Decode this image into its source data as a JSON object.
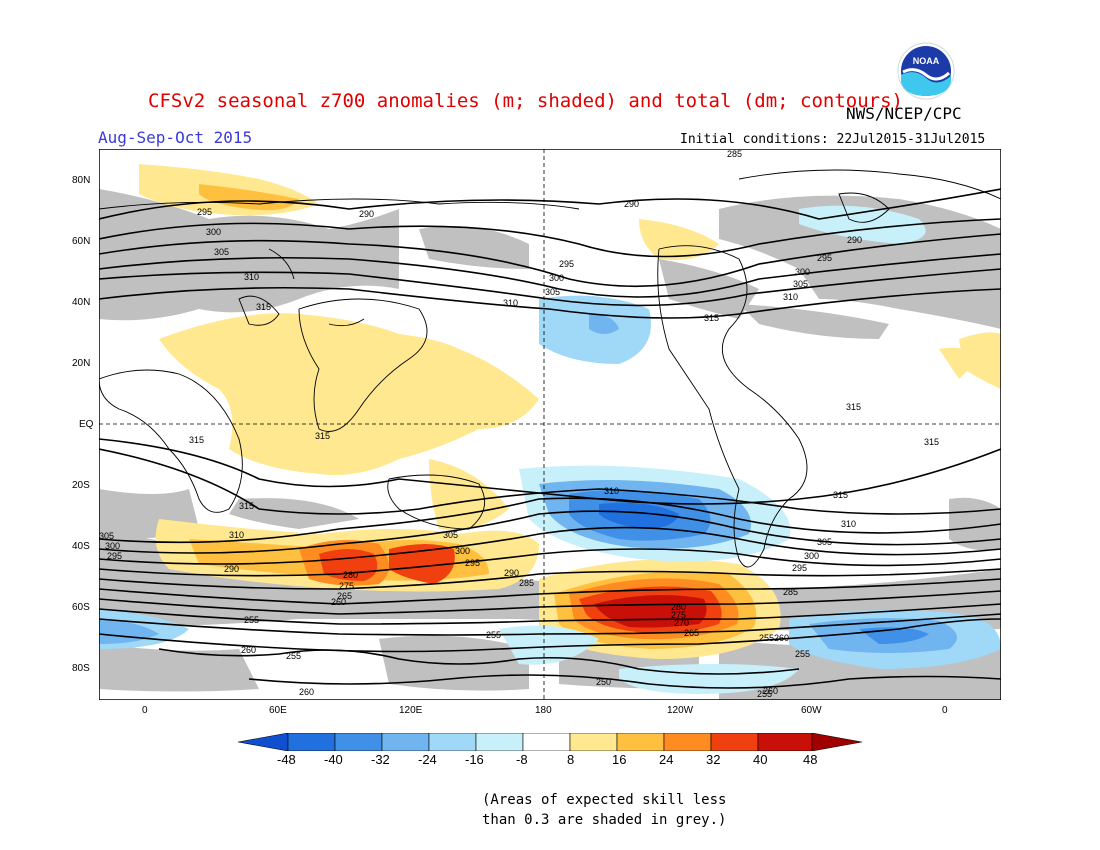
{
  "header": {
    "title": "CFSv2 seasonal z700 anomalies (m; shaded) and total (dm; contours)",
    "agency": "NWS/NCEP/CPC",
    "season": "Aug-Sep-Oct 2015",
    "initial_conditions": "Initial conditions: 22Jul2015-31Jul2015",
    "logo_text": "NOAA"
  },
  "map": {
    "lat_labels": [
      "80N",
      "60N",
      "40N",
      "20N",
      "EQ",
      "20S",
      "40S",
      "60S",
      "80S"
    ],
    "lon_labels": [
      "0",
      "60E",
      "120E",
      "180",
      "120W",
      "60W",
      "0"
    ],
    "contour_labels": [
      "285",
      "295",
      "290",
      "300",
      "305",
      "310",
      "315",
      "315",
      "290",
      "295",
      "300",
      "305",
      "310",
      "315",
      "295",
      "300",
      "305",
      "310",
      "315",
      "290",
      "310",
      "315",
      "315",
      "315",
      "315",
      "310",
      "305",
      "300",
      "295",
      "310",
      "305",
      "300",
      "295",
      "290",
      "285",
      "305",
      "300",
      "295",
      "290",
      "280",
      "275",
      "265",
      "260",
      "255",
      "260",
      "255",
      "260",
      "255",
      "250",
      "255",
      "260",
      "285",
      "280",
      "275",
      "270",
      "265",
      "260",
      "255",
      "255"
    ],
    "colors": {
      "neg48": "#1050d0",
      "neg40": "#2070e0",
      "neg32": "#4090e8",
      "neg24": "#70b4f0",
      "neg16": "#a0d8f8",
      "neg8": "#c8f0fa",
      "zero": "#ffffff",
      "pos8": "#ffe890",
      "pos16": "#ffc040",
      "pos24": "#ff8c20",
      "pos32": "#f04010",
      "pos40": "#c81008",
      "pos48": "#a00000",
      "low_skill_grey": "#c0c0c0"
    }
  },
  "colorbar": {
    "tick_labels": [
      "-48",
      "-40",
      "-32",
      "-24",
      "-16",
      "-8",
      "8",
      "16",
      "24",
      "32",
      "40",
      "48"
    ]
  },
  "footnote": {
    "line1": "(Areas of expected skill less",
    "line2": "than 0.3 are shaded in grey.)"
  }
}
